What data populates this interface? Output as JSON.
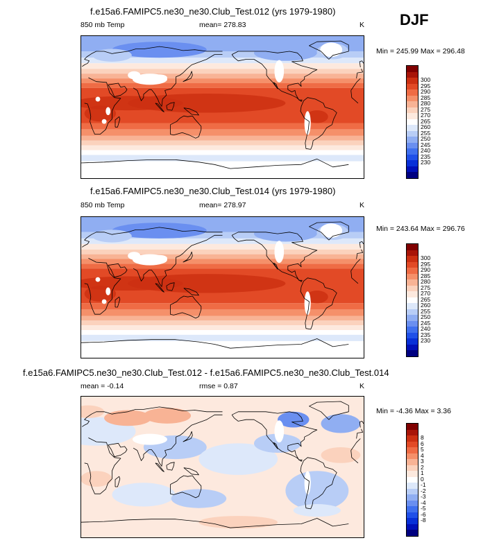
{
  "season": "DJF",
  "colors": {
    "abs": [
      "#000080",
      "#0010b8",
      "#0830d8",
      "#2050e8",
      "#4070ee",
      "#6a8ff0",
      "#90aef2",
      "#b8cdf6",
      "#dde8fa",
      "#ffffff",
      "#fde9de",
      "#fbd2bd",
      "#f8b395",
      "#f5906a",
      "#ef6c45",
      "#e24a26",
      "#cc3012",
      "#a81508",
      "#800000"
    ],
    "diff": [
      "#000080",
      "#0010b8",
      "#0830d8",
      "#2050e8",
      "#4070ee",
      "#6a8ff0",
      "#90aef2",
      "#b8cdf6",
      "#dde8fa",
      "#ffffff",
      "#fde9de",
      "#fbd2bd",
      "#f8b395",
      "#f5906a",
      "#ef6c45",
      "#e24a26",
      "#cc3012",
      "#a81508",
      "#800000"
    ],
    "land_mask": "#ffffff",
    "coast": "#000000"
  },
  "chart_data": [
    {
      "type": "heatmap",
      "title": "f.e15a6.FAMIPC5.ne30_ne30.Club_Test.012 (yrs 1979-1980)",
      "left_label": "850 mb Temp",
      "center_label": "mean= 278.83",
      "right_label": "K",
      "minmax": "Min = 245.99 Max = 296.48",
      "min": 245.99,
      "max": 296.48,
      "mean": 278.83,
      "levels": [
        "230",
        "235",
        "240",
        "245",
        "250",
        "255",
        "260",
        "265",
        "270",
        "275",
        "280",
        "285",
        "290",
        "295",
        "300"
      ],
      "colorbar": "abs"
    },
    {
      "type": "heatmap",
      "title": "f.e15a6.FAMIPC5.ne30_ne30.Club_Test.014 (yrs 1979-1980)",
      "left_label": "850 mb Temp",
      "center_label": "mean= 278.97",
      "right_label": "K",
      "minmax": "Min = 243.64 Max = 296.76",
      "min": 243.64,
      "max": 296.76,
      "mean": 278.97,
      "levels": [
        "230",
        "235",
        "240",
        "245",
        "250",
        "255",
        "260",
        "265",
        "270",
        "275",
        "280",
        "285",
        "290",
        "295",
        "300"
      ],
      "colorbar": "abs"
    },
    {
      "type": "heatmap",
      "title": "f.e15a6.FAMIPC5.ne30_ne30.Club_Test.012 - f.e15a6.FAMIPC5.ne30_ne30.Club_Test.014",
      "left_label": "mean =  -0.14",
      "center_label": "rmse =  0.87",
      "right_label": "K",
      "minmax": "Min = -4.36 Max =  3.36",
      "min": -4.36,
      "max": 3.36,
      "mean": -0.14,
      "rmse": 0.87,
      "levels": [
        "-8",
        "-6",
        "-5",
        "-4",
        "-3",
        "-2",
        "-1",
        "0",
        "1",
        "2",
        "3",
        "4",
        "5",
        "6",
        "8"
      ],
      "colorbar": "diff"
    }
  ]
}
